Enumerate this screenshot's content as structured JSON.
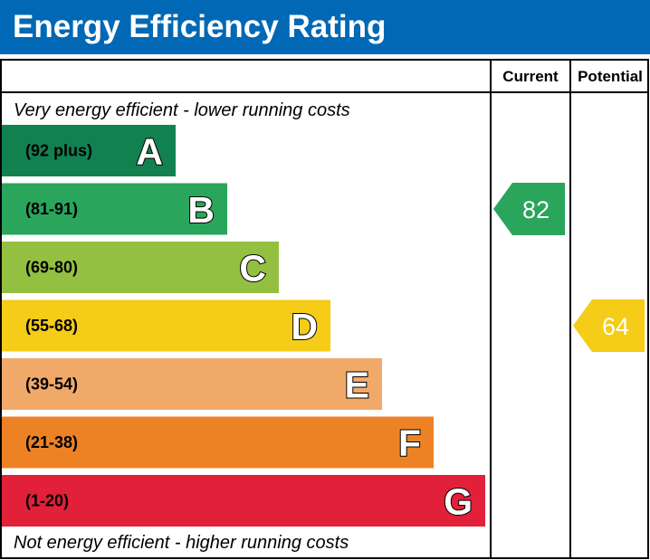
{
  "title": "Energy Efficiency Rating",
  "chart_data": {
    "type": "bar",
    "title": "Energy Efficiency Rating",
    "columns": [
      "Current",
      "Potential"
    ],
    "top_note": "Very energy efficient - lower running costs",
    "bottom_note": "Not energy efficient - higher running costs",
    "bands": [
      {
        "letter": "A",
        "range": "(92 plus)",
        "min": 92,
        "max": 100,
        "color": "#128150",
        "text_color": "#ffffff"
      },
      {
        "letter": "B",
        "range": "(81-91)",
        "min": 81,
        "max": 91,
        "color": "#2aa55c",
        "text_color": "#ffffff"
      },
      {
        "letter": "C",
        "range": "(69-80)",
        "min": 69,
        "max": 80,
        "color": "#94c042",
        "text_color": "#000000"
      },
      {
        "letter": "D",
        "range": "(55-68)",
        "min": 55,
        "max": 68,
        "color": "#f5cc17",
        "text_color": "#000000"
      },
      {
        "letter": "E",
        "range": "(39-54)",
        "min": 39,
        "max": 54,
        "color": "#f1a96a",
        "text_color": "#000000"
      },
      {
        "letter": "F",
        "range": "(21-38)",
        "min": 21,
        "max": 38,
        "color": "#ed8225",
        "text_color": "#000000"
      },
      {
        "letter": "G",
        "range": "(1-20)",
        "min": 1,
        "max": 20,
        "color": "#e22039",
        "text_color": "#000000"
      }
    ],
    "current": {
      "value": 82,
      "band": "B",
      "color": "#2aa55c"
    },
    "potential": {
      "value": 64,
      "band": "D",
      "color": "#f5cc17"
    }
  }
}
